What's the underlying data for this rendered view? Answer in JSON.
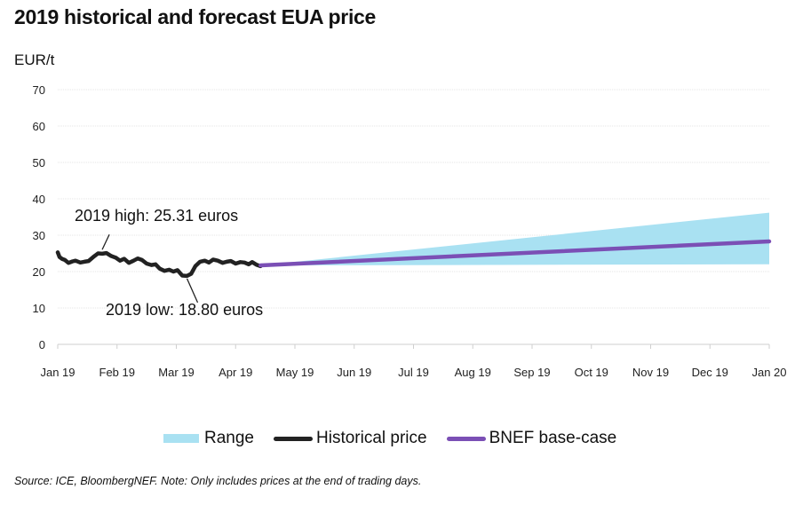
{
  "chart_data": {
    "type": "line",
    "title": "2019 historical and forecast EUA price",
    "ylabel": "EUR/t",
    "xlabel": "",
    "ylim": [
      0,
      70
    ],
    "yticks": [
      0,
      10,
      20,
      30,
      40,
      50,
      60,
      70
    ],
    "grid": true,
    "x_tick_labels": [
      "Jan 19",
      "Feb 19",
      "Mar 19",
      "Apr 19",
      "May 19",
      "Jun 19",
      "Jul 19",
      "Aug 19",
      "Sep 19",
      "Oct 19",
      "Nov 19",
      "Dec 19",
      "Jan 20"
    ],
    "x_unit": "months since Jan 2019",
    "series": [
      {
        "name": "Historical price",
        "color": "#222222",
        "x": [
          0,
          0.03,
          0.07,
          0.12,
          0.18,
          0.25,
          0.3,
          0.38,
          0.45,
          0.52,
          0.6,
          0.68,
          0.75,
          0.82,
          0.9,
          0.98,
          1.05,
          1.12,
          1.2,
          1.28,
          1.35,
          1.42,
          1.5,
          1.58,
          1.65,
          1.72,
          1.8,
          1.88,
          1.95,
          2.02,
          2.1,
          2.18,
          2.25,
          2.32,
          2.4,
          2.48,
          2.55,
          2.62,
          2.7,
          2.78,
          2.85,
          2.92,
          3.0,
          3.08,
          3.15,
          3.22,
          3.28,
          3.35,
          3.42
        ],
        "values": [
          25.3,
          24.0,
          23.5,
          23.2,
          22.4,
          22.8,
          23.0,
          22.5,
          22.7,
          22.9,
          24.0,
          25.0,
          24.9,
          25.1,
          24.3,
          23.8,
          23.0,
          23.5,
          22.4,
          23.0,
          23.6,
          23.2,
          22.2,
          21.8,
          22.0,
          20.8,
          20.2,
          20.5,
          20.0,
          20.4,
          18.9,
          18.8,
          19.4,
          21.5,
          22.7,
          23.0,
          22.5,
          23.3,
          23.0,
          22.4,
          22.7,
          22.9,
          22.2,
          22.6,
          22.5,
          22.0,
          22.6,
          21.9,
          21.5
        ]
      },
      {
        "name": "BNEF base-case",
        "color": "#7b4fb5",
        "x": [
          3.42,
          12
        ],
        "values": [
          21.7,
          28.3
        ]
      }
    ],
    "range": {
      "name": "Range",
      "color": "#a9e1f2",
      "x": [
        3.42,
        12
      ],
      "upper": [
        21.7,
        36.2
      ],
      "lower": [
        21.7,
        22.0
      ]
    },
    "annotations": [
      {
        "text": "2019 high: 25.31 euros",
        "x": 0.75,
        "y": 25.31
      },
      {
        "text": "2019 low: 18.80 euros",
        "x": 2.18,
        "y": 18.8
      }
    ],
    "legend": {
      "placement": "bottom-center",
      "entries": [
        "Range",
        "Historical price",
        "BNEF base-case"
      ]
    }
  },
  "source_note": "Source: ICE, BloombergNEF. Note: Only includes prices at the end of trading days."
}
